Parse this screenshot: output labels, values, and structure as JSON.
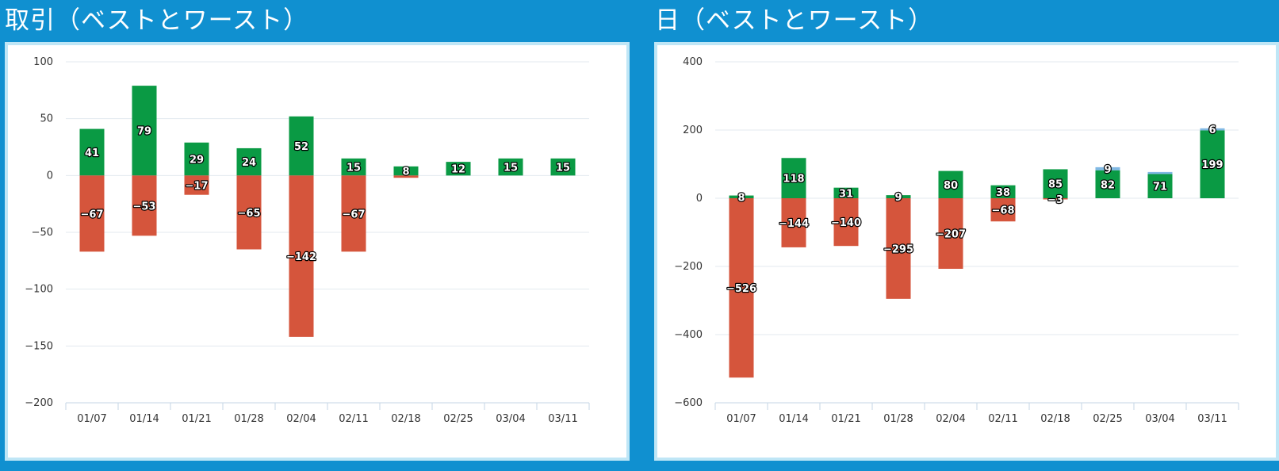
{
  "panels": [
    {
      "title": "取引（ベストとワースト）"
    },
    {
      "title": "日（ベストとワースト）"
    }
  ],
  "colors": {
    "best": "#0a9a44",
    "worst": "#d5553c",
    "axis": "#c5d6e6",
    "grid": "#e3e9ef",
    "background": "#1090d0"
  },
  "chart_data": [
    {
      "type": "bar",
      "stacked": true,
      "categories": [
        "01/07",
        "01/14",
        "01/21",
        "01/28",
        "02/04",
        "02/11",
        "02/18",
        "02/25",
        "03/04",
        "03/11"
      ],
      "series": [
        {
          "color": "#0a9a44",
          "values": [
            41,
            79,
            29,
            24,
            52,
            15,
            8,
            12,
            15,
            15
          ]
        },
        {
          "color": "#d5553c",
          "values": [
            -67,
            -53,
            -17,
            -65,
            -142,
            -67,
            -2,
            null,
            null,
            null
          ]
        }
      ],
      "data_labels": [
        [
          "41",
          "79",
          "29",
          "24",
          "52",
          "15",
          "8",
          "12",
          "15",
          "15"
        ],
        [
          "-67",
          "-53",
          "-17",
          "-65",
          "-142",
          "-67",
          "",
          "",
          "",
          ""
        ]
      ],
      "yticks": [
        100,
        50,
        0,
        -50,
        -100,
        -150,
        -200
      ],
      "ylim": [
        -200,
        100
      ],
      "grid": true,
      "legend": "none"
    },
    {
      "type": "bar",
      "stacked": true,
      "categories": [
        "01/07",
        "01/14",
        "01/21",
        "01/28",
        "02/04",
        "02/11",
        "02/18",
        "02/25",
        "03/04",
        "03/11"
      ],
      "series": [
        {
          "color": "#0a9a44",
          "values": [
            8,
            118,
            31,
            9,
            80,
            38,
            85,
            82,
            71,
            199
          ]
        },
        {
          "color": "#d5553c",
          "values": [
            -526,
            -144,
            -140,
            -295,
            -207,
            -68,
            -3,
            null,
            null,
            null
          ]
        },
        {
          "color": "#80b8e4",
          "values": [
            null,
            null,
            null,
            null,
            null,
            null,
            null,
            9,
            6,
            6
          ]
        }
      ],
      "data_labels": [
        [
          "8",
          "118",
          "31",
          "9",
          "80",
          "38",
          "85",
          "82",
          "71",
          "199"
        ],
        [
          "-526",
          "-144",
          "-140",
          "-295",
          "-207",
          "-68",
          "-3",
          "",
          "",
          ""
        ],
        [
          "",
          "",
          "",
          "",
          "",
          "",
          "",
          "9",
          "",
          "6"
        ]
      ],
      "yticks": [
        400,
        200,
        0,
        -200,
        -400,
        -600
      ],
      "ylim": [
        -600,
        400
      ],
      "grid": true,
      "legend": "none"
    }
  ]
}
